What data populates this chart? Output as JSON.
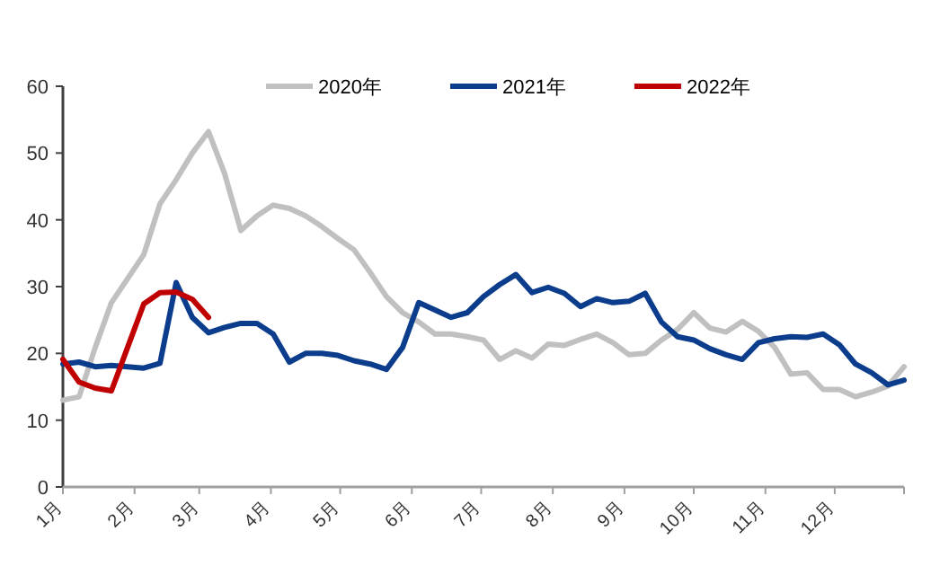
{
  "chart_data": {
    "type": "line",
    "x": [
      "--01-01",
      "--01-08",
      "--01-15",
      "--01-22",
      "--01-29",
      "--02-05",
      "--02-12",
      "--02-19",
      "--02-26",
      "--03-05",
      "--03-12",
      "--03-19",
      "--03-26",
      "--04-02",
      "--04-09",
      "--04-16",
      "--04-23",
      "--04-30",
      "--05-07",
      "--05-14",
      "--05-21",
      "--05-28",
      "--06-04",
      "--06-11",
      "--06-18",
      "--06-25",
      "--07-02",
      "--07-09",
      "--07-16",
      "--07-23",
      "--07-30",
      "--08-06",
      "--08-13",
      "--08-20",
      "--08-27",
      "--09-03",
      "--09-10",
      "--09-17",
      "--09-24",
      "--10-01",
      "--10-08",
      "--10-15",
      "--10-22",
      "--10-29",
      "--11-05",
      "--11-12",
      "--11-19",
      "--11-26",
      "--12-03",
      "--12-10",
      "--12-17",
      "--12-24",
      "--12-31"
    ],
    "series": [
      {
        "name": "2020年",
        "color": "#c0c0c0",
        "values": [
          13.0,
          13.5,
          20.9,
          27.6,
          31.2,
          34.8,
          42.4,
          46.0,
          50.0,
          53.2,
          46.9,
          38.4,
          40.6,
          42.2,
          41.7,
          40.6,
          39.0,
          37.2,
          35.5,
          32.1,
          28.5,
          26.1,
          24.7,
          22.9,
          22.9,
          22.5,
          22.0,
          19.1,
          20.4,
          19.3,
          21.4,
          21.2,
          22.1,
          22.9,
          21.6,
          19.8,
          20.0,
          22.0,
          23.6,
          26.1,
          23.8,
          23.2,
          24.8,
          23.3,
          20.9,
          16.9,
          17.1,
          14.6,
          14.6,
          13.5,
          14.2,
          15.1,
          18.0
        ]
      },
      {
        "name": "2021年",
        "color": "#0b3d8c",
        "values": [
          18.4,
          18.7,
          18.0,
          18.2,
          18.0,
          17.8,
          18.5,
          30.6,
          25.4,
          23.1,
          23.9,
          24.5,
          24.5,
          22.9,
          18.7,
          20.0,
          20.0,
          19.7,
          18.9,
          18.4,
          17.6,
          20.9,
          27.6,
          26.5,
          25.4,
          26.1,
          28.5,
          30.3,
          31.8,
          29.1,
          29.9,
          29.0,
          27.0,
          28.2,
          27.6,
          27.8,
          29.0,
          24.7,
          22.5,
          22.0,
          20.7,
          19.8,
          19.1,
          21.6,
          22.2,
          22.5,
          22.4,
          22.9,
          21.3,
          18.4,
          17.1,
          15.3,
          16.0
        ]
      },
      {
        "name": "2022年",
        "color": "#c00000",
        "x": [
          "--01-01",
          "--01-08",
          "--01-15",
          "--01-22",
          "--01-29",
          "--02-05",
          "--02-12",
          "--02-19",
          "--02-26",
          "--03-05"
        ],
        "values": [
          19.1,
          15.7,
          14.8,
          14.4,
          20.9,
          27.4,
          29.1,
          29.2,
          28.1,
          25.4
        ]
      }
    ],
    "xlim": [
      "--01-01",
      "--12-31"
    ],
    "xticks": [
      {
        "value": "--01-01",
        "label": "1月"
      },
      {
        "value": "--02-01",
        "label": "2月"
      },
      {
        "value": "--03-01",
        "label": "3月"
      },
      {
        "value": "--04-01",
        "label": "4月"
      },
      {
        "value": "--05-01",
        "label": "5月"
      },
      {
        "value": "--06-01",
        "label": "6月"
      },
      {
        "value": "--07-01",
        "label": "7月"
      },
      {
        "value": "--08-01",
        "label": "8月"
      },
      {
        "value": "--09-01",
        "label": "9月"
      },
      {
        "value": "--10-01",
        "label": "10月"
      },
      {
        "value": "--11-01",
        "label": "11月"
      },
      {
        "value": "--12-01",
        "label": "12月"
      },
      {
        "value": "--12-31",
        "label": null
      }
    ],
    "ylim": [
      0,
      60
    ],
    "yticks": [
      0,
      10,
      20,
      30,
      40,
      50,
      60
    ],
    "legend": "top",
    "grid": false
  }
}
